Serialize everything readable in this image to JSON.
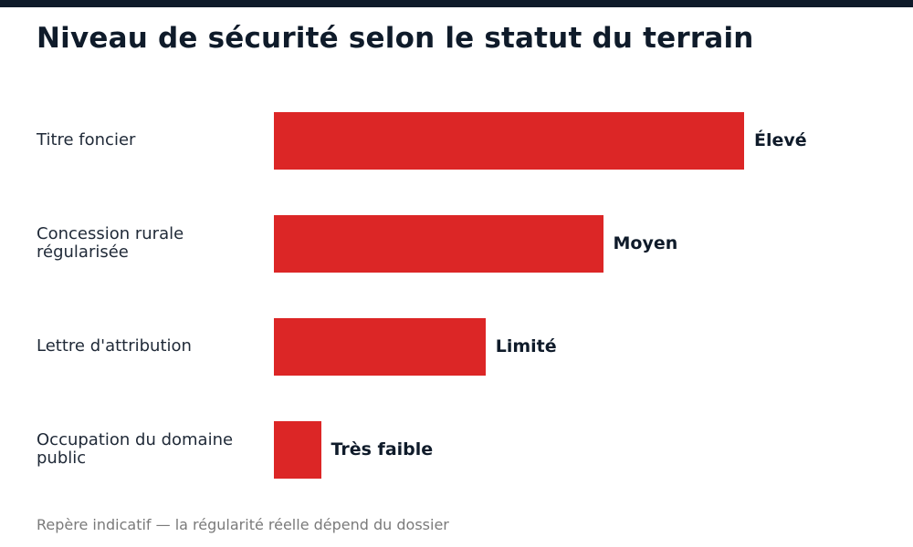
{
  "colors": {
    "bar": "#dc2626",
    "header_bar": "#0f1b2a",
    "title": "#0f1b2a",
    "footnote": "#7a7a7a"
  },
  "chart_data": {
    "type": "bar",
    "orientation": "horizontal",
    "title": "Niveau de sécurité selon le statut du terrain",
    "categories": [
      "Titre foncier",
      "Concession rurale régularisée",
      "Lettre d'attribution",
      "Occupation du domaine public"
    ],
    "values": [
      100,
      70,
      45,
      10
    ],
    "value_labels": [
      "Élevé",
      "Moyen",
      "Limité",
      "Très faible"
    ],
    "xlim": [
      0,
      100
    ],
    "xlabel": "",
    "ylabel": "",
    "grid": false,
    "legend": "none",
    "footnote": "Repère indicatif — la régularité réelle dépend du dossier"
  }
}
